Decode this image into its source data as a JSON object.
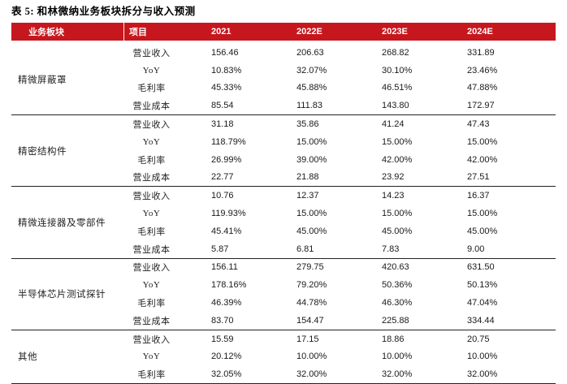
{
  "title": "表 5: 和林微纳业务板块拆分与收入预测",
  "colors": {
    "header_bg": "#C7171E",
    "header_text": "#FFFFFF",
    "separator_line": "#222222"
  },
  "table": {
    "headers": [
      "业务板块",
      "项目",
      "2021",
      "2022E",
      "2023E",
      "2024E"
    ],
    "groups": [
      {
        "segment": "精微屏蔽罩",
        "rows": [
          {
            "item": "营业收入",
            "values": [
              "156.46",
              "206.63",
              "268.82",
              "331.89"
            ]
          },
          {
            "item": "YoY",
            "values": [
              "10.83%",
              "32.07%",
              "30.10%",
              "23.46%"
            ]
          },
          {
            "item": "毛利率",
            "values": [
              "45.33%",
              "45.88%",
              "46.51%",
              "47.88%"
            ]
          },
          {
            "item": "营业成本",
            "values": [
              "85.54",
              "111.83",
              "143.80",
              "172.97"
            ]
          }
        ]
      },
      {
        "segment": "精密结构件",
        "rows": [
          {
            "item": "营业收入",
            "values": [
              "31.18",
              "35.86",
              "41.24",
              "47.43"
            ]
          },
          {
            "item": "YoY",
            "values": [
              "118.79%",
              "15.00%",
              "15.00%",
              "15.00%"
            ]
          },
          {
            "item": "毛利率",
            "values": [
              "26.99%",
              "39.00%",
              "42.00%",
              "42.00%"
            ]
          },
          {
            "item": "营业成本",
            "values": [
              "22.77",
              "21.88",
              "23.92",
              "27.51"
            ]
          }
        ]
      },
      {
        "segment": "精微连接器及零部件",
        "rows": [
          {
            "item": "营业收入",
            "values": [
              "10.76",
              "12.37",
              "14.23",
              "16.37"
            ]
          },
          {
            "item": "YoY",
            "values": [
              "119.93%",
              "15.00%",
              "15.00%",
              "15.00%"
            ]
          },
          {
            "item": "毛利率",
            "values": [
              "45.41%",
              "45.00%",
              "45.00%",
              "45.00%"
            ]
          },
          {
            "item": "营业成本",
            "values": [
              "5.87",
              "6.81",
              "7.83",
              "9.00"
            ]
          }
        ]
      },
      {
        "segment": "半导体芯片测试探针",
        "rows": [
          {
            "item": "营业收入",
            "values": [
              "156.11",
              "279.75",
              "420.63",
              "631.50"
            ]
          },
          {
            "item": "YoY",
            "values": [
              "178.16%",
              "79.20%",
              "50.36%",
              "50.13%"
            ]
          },
          {
            "item": "毛利率",
            "values": [
              "46.39%",
              "44.78%",
              "46.30%",
              "47.04%"
            ]
          },
          {
            "item": "营业成本",
            "values": [
              "83.70",
              "154.47",
              "225.88",
              "334.44"
            ]
          }
        ]
      },
      {
        "segment": "其他",
        "rows": [
          {
            "item": "营业收入",
            "values": [
              "15.59",
              "17.15",
              "18.86",
              "20.75"
            ]
          },
          {
            "item": "YoY",
            "values": [
              "20.12%",
              "10.00%",
              "10.00%",
              "10.00%"
            ]
          },
          {
            "item": "毛利率",
            "values": [
              "32.05%",
              "32.00%",
              "32.00%",
              "32.00%"
            ]
          }
        ]
      }
    ]
  }
}
